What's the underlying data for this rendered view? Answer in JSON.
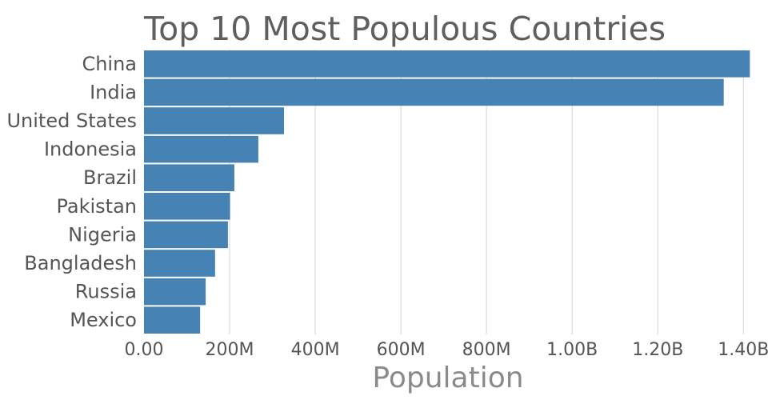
{
  "chart_data": {
    "type": "bar",
    "orientation": "horizontal",
    "title": "Top 10 Most Populous Countries",
    "xlabel": "Population",
    "ylabel": "",
    "categories": [
      "China",
      "India",
      "United States",
      "Indonesia",
      "Brazil",
      "Pakistan",
      "Nigeria",
      "Bangladesh",
      "Russia",
      "Mexico"
    ],
    "values": [
      1415000000,
      1354000000,
      327000000,
      267000000,
      211000000,
      201000000,
      196000000,
      166000000,
      144000000,
      131000000
    ],
    "xlim": [
      0,
      1420000000
    ],
    "xticks": [
      0,
      200000000,
      400000000,
      600000000,
      800000000,
      1000000000,
      1200000000,
      1400000000
    ],
    "xtick_labels": [
      "0.00",
      "200M",
      "400M",
      "600M",
      "800M",
      "1.00B",
      "1.20B",
      "1.40B"
    ],
    "grid": true,
    "bar_color": "#4682b4"
  }
}
